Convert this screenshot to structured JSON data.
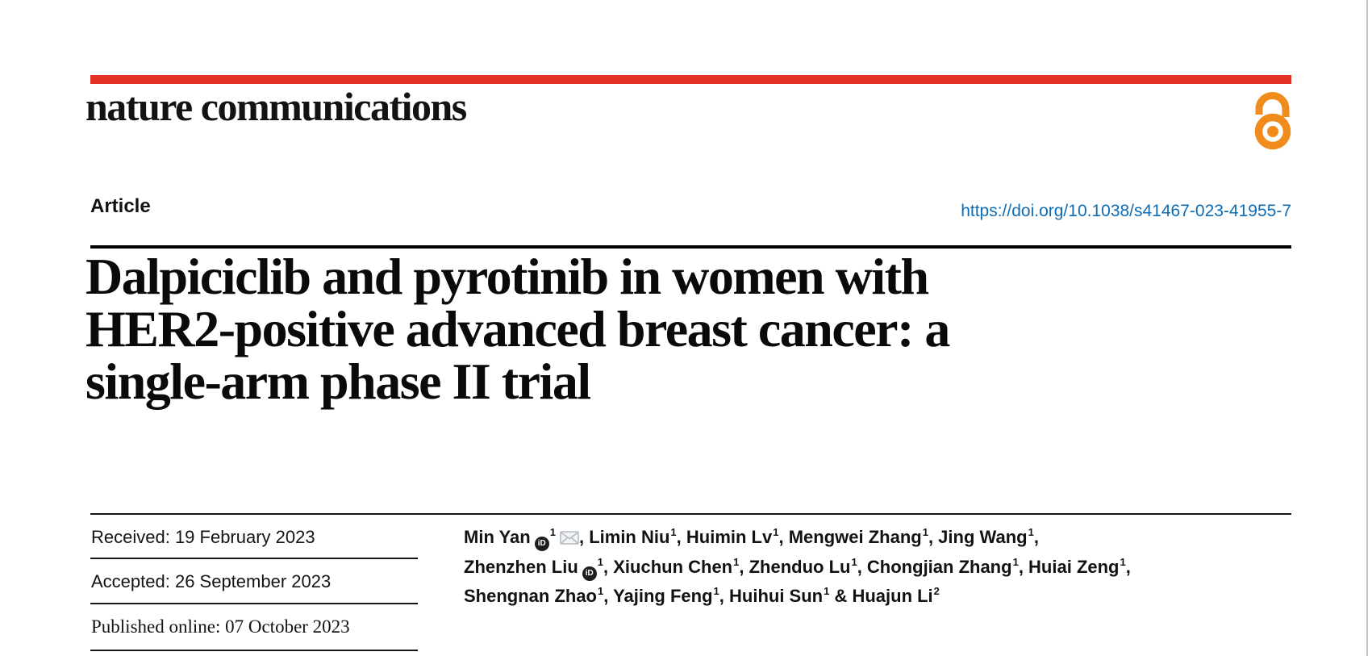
{
  "colors": {
    "brand_red": "#e33227",
    "link_blue": "#0d6cb5",
    "open_access_orange": "#f18b1c"
  },
  "masthead": {
    "journal": "nature communications",
    "open_access_icon": "open-lock-icon"
  },
  "header": {
    "article_type": "Article",
    "doi": "https://doi.org/10.1038/s41467-023-41955-7"
  },
  "title": {
    "line1": "Dalpiciclib and pyrotinib in women with",
    "line2": "HER2-positive advanced breast cancer: a",
    "line3": "single-arm phase II trial"
  },
  "dates": {
    "received": "Received: 19 February 2023",
    "accepted": "Accepted: 26 September 2023",
    "published": "Published online: 07 October 2023"
  },
  "authors": {
    "orcid_label": "iD",
    "list": [
      {
        "name": "Min Yan",
        "orcid": true,
        "sup": "1",
        "email": true,
        "sep": ", "
      },
      {
        "name": "Limin Niu",
        "sup": "1",
        "sep": ", "
      },
      {
        "name": "Huimin Lv",
        "sup": "1",
        "sep": ", "
      },
      {
        "name": "Mengwei Zhang",
        "sup": "1",
        "sep": ", "
      },
      {
        "name": "Jing Wang",
        "sup": "1",
        "sep": ",",
        "br": true
      },
      {
        "name": "Zhenzhen Liu",
        "orcid": true,
        "sup": "1",
        "sep": ", "
      },
      {
        "name": "Xiuchun Chen",
        "sup": "1",
        "sep": ", "
      },
      {
        "name": "Zhenduo Lu",
        "sup": "1",
        "sep": ", "
      },
      {
        "name": "Chongjian Zhang",
        "sup": "1",
        "sep": ", "
      },
      {
        "name": "Huiai Zeng",
        "sup": "1",
        "sep": ",",
        "br": true
      },
      {
        "name": "Shengnan Zhao",
        "sup": "1",
        "sep": ", "
      },
      {
        "name": "Yajing Feng",
        "sup": "1",
        "sep": ", "
      },
      {
        "name": "Huihui Sun",
        "sup": "1",
        "sep": " & "
      },
      {
        "name": "Huajun Li",
        "sup": "2",
        "sep": ""
      }
    ]
  }
}
